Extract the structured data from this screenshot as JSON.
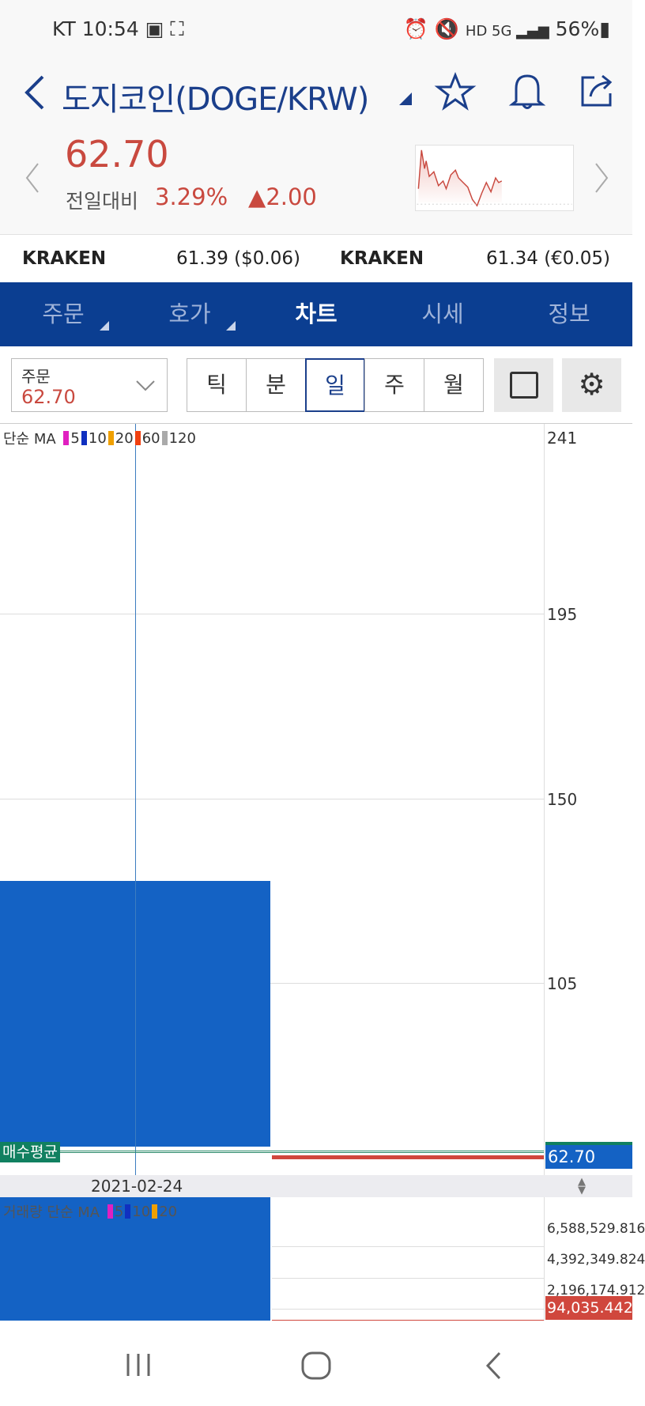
{
  "status_bar": {
    "carrier": "KT",
    "time": "10:54",
    "battery": "56%",
    "icons": [
      "gallery-icon",
      "screenshot-icon",
      "alarm-icon",
      "mute-icon",
      "hd-icon",
      "5g-icon",
      "signal-icon",
      "battery-icon"
    ]
  },
  "header": {
    "title": "도지코인(DOGE/KRW)",
    "price": "62.70",
    "compare_label": "전일대비",
    "change_pct": "3.29%",
    "change_abs": "2.00",
    "up_color": "#c9493f"
  },
  "exchanges": [
    {
      "name": "KRAKEN",
      "value": "61.39 ($0.06)"
    },
    {
      "name": "KRAKEN",
      "value": "61.34 (€0.05)"
    }
  ],
  "tabs": [
    {
      "label": "주문"
    },
    {
      "label": "호가"
    },
    {
      "label": "차트",
      "active": true
    },
    {
      "label": "시세"
    },
    {
      "label": "정보"
    }
  ],
  "controls": {
    "select_label": "주문",
    "select_value": "62.70",
    "periods": [
      "틱",
      "분",
      "일",
      "주",
      "월"
    ],
    "selected_period": "일"
  },
  "chart": {
    "legend": {
      "prefix": "단순 MA",
      "items": [
        {
          "label": "5",
          "color": "#e020c0"
        },
        {
          "label": "10",
          "color": "#1030c0"
        },
        {
          "label": "20",
          "color": "#f0a000"
        },
        {
          "label": "60",
          "color": "#f04010"
        },
        {
          "label": "120",
          "color": "#aaaaaa"
        }
      ]
    },
    "y_ticks": [
      "241",
      "195",
      "150",
      "105"
    ],
    "buy_avg_label": "매수평균",
    "current_price": "62.70",
    "date": "2021-02-24",
    "volume_legend": {
      "prefix": "거래량 단순 MA",
      "items": [
        {
          "label": "5",
          "color": "#e020c0"
        },
        {
          "label": "10",
          "color": "#1030c0"
        },
        {
          "label": "20",
          "color": "#f0a000"
        }
      ]
    },
    "volume_ticks": [
      "6,588,529.816",
      "4,392,349.824",
      "2,196,174.912"
    ],
    "current_volume": "94,035.442"
  }
}
